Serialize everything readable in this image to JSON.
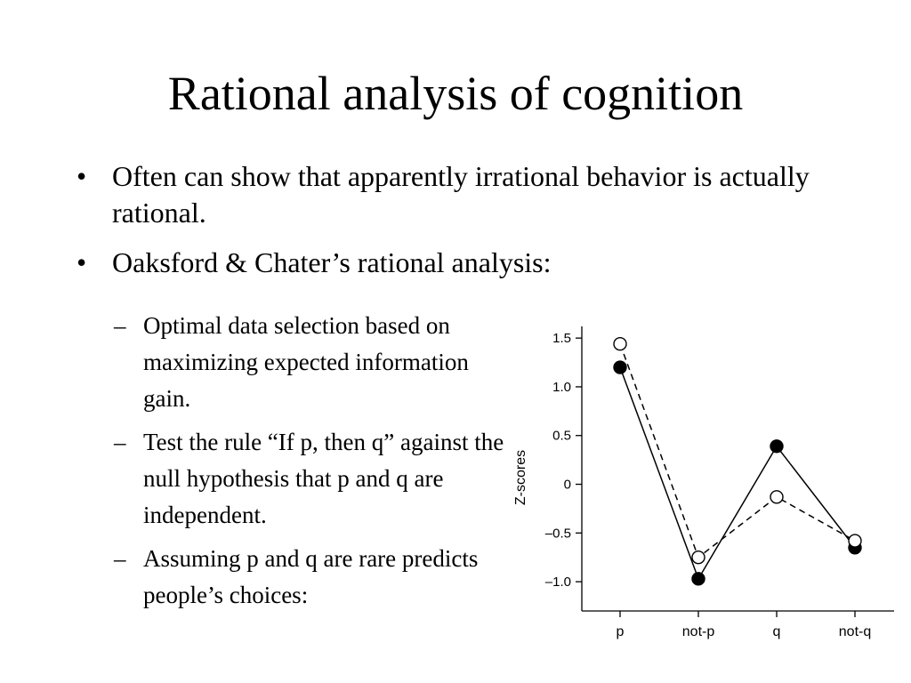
{
  "slide": {
    "title": "Rational analysis of cognition",
    "bullets": [
      {
        "marker": "•",
        "text": "Often can show that apparently irrational behavior is actually rational."
      },
      {
        "marker": "•",
        "text": "Oaksford & Chater’s rational analysis:"
      }
    ],
    "sub_bullets": [
      {
        "marker": "–",
        "text": "Optimal data selection based on maximizing expected information gain."
      },
      {
        "marker": "–",
        "text": "Test the rule “If p, then q” against the null hypothesis that p and q are independent."
      },
      {
        "marker": "–",
        "text": "Assuming p and q are rare predicts people’s choices:"
      }
    ]
  },
  "chart_data": {
    "type": "line",
    "categories": [
      "p",
      "not-p",
      "q",
      "not-q"
    ],
    "series": [
      {
        "values": [
          1.2,
          -0.97,
          0.39,
          -0.65
        ],
        "line_style": "solid",
        "marker": "filled-circle",
        "color": "#000000"
      },
      {
        "values": [
          1.44,
          -0.75,
          -0.13,
          -0.58
        ],
        "line_style": "dashed",
        "marker": "open-circle",
        "color": "#000000"
      }
    ],
    "ylabel": "Z-scores",
    "xlabel": "",
    "ylim": [
      -1.3,
      1.62
    ],
    "yticks": [
      1.5,
      1.0,
      0.5,
      0,
      -0.5,
      -1.0
    ],
    "ytick_labels": [
      "1.5",
      "1.0",
      "0.5",
      "0",
      "–0.5",
      "–1.0"
    ],
    "grid": false,
    "legend": "none"
  }
}
